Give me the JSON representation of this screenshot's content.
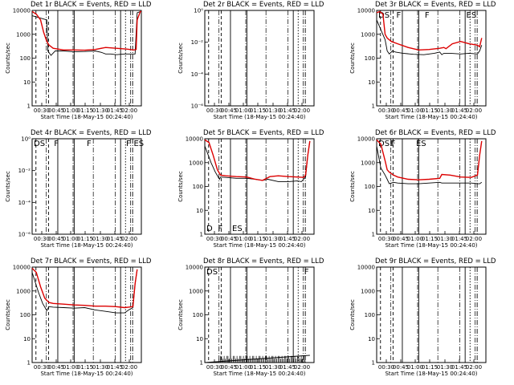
{
  "chart_data": [
    {
      "type": "line",
      "title": "Det 1r BLACK = Events, RED = LLD",
      "ylabel": "Counts/sec",
      "xlabel": "Start Time (18-May-15 00:24:40)",
      "y_ticks": [
        "1",
        "10",
        "100",
        "1000",
        "10000"
      ],
      "x_ticks": [
        "00:30",
        "00:45",
        "01:00",
        "01:15",
        "01:30",
        "01:45",
        "02:00"
      ],
      "markers": [
        {
          "label": "D",
          "t": 0
        }
      ],
      "series": [
        {
          "name": "Events",
          "color": "#000000",
          "t": [
            0,
            14,
            15,
            18,
            22,
            30,
            40,
            50,
            60,
            66,
            70,
            75,
            80,
            88,
            94,
            98,
            100,
            103,
            104
          ],
          "values": [
            6000,
            4000,
            200,
            130,
            200,
            200,
            185,
            190,
            200,
            175,
            150,
            150,
            140,
            150,
            150,
            150,
            8000,
            9000,
            9000
          ]
        },
        {
          "name": "LLD",
          "color": "#dd0000",
          "t": [
            0,
            4,
            8,
            11,
            14,
            16,
            20,
            30,
            40,
            50,
            60,
            70,
            80,
            90,
            97,
            99,
            100,
            103,
            104
          ],
          "values": [
            9000,
            7000,
            4000,
            1200,
            500,
            360,
            260,
            220,
            220,
            215,
            230,
            280,
            260,
            240,
            220,
            230,
            4000,
            9000,
            9000
          ]
        }
      ]
    },
    {
      "type": "line",
      "title": "Det 2r BLACK = Events, RED = LLD",
      "ylabel": "Counts/sec",
      "xlabel": "Start Time (18-May-15 00:24:40)",
      "y_ticks": [
        "10⁻⁶",
        "10⁻⁴",
        "10⁻²",
        "10⁰"
      ],
      "x_ticks": [
        "00:30",
        "00:45",
        "01:00",
        "01:15",
        "01:30",
        "01:45",
        "02:00"
      ],
      "markers": [
        {
          "label": "DS",
          "t": 0
        },
        {
          "label": "F",
          "t": 0
        },
        {
          "label": "F",
          "t": 0
        },
        {
          "label": "F",
          "t": 0
        },
        {
          "label": "ES",
          "t": 0
        }
      ],
      "series": []
    },
    {
      "type": "line",
      "title": "Det 3r BLACK = Events, RED = LLD",
      "ylabel": "Counts/sec",
      "xlabel": "Start Time (18-May-15 00:24:40)",
      "y_ticks": [
        "1",
        "10",
        "100",
        "1000",
        "10000"
      ],
      "x_ticks": [
        "00:30",
        "00:45",
        "01:00",
        "01:15",
        "01:30",
        "01:45",
        "02:00"
      ],
      "markers": [
        {
          "label": "DS",
          "t": 0
        },
        {
          "label": "F",
          "t": 0
        },
        {
          "label": "F",
          "t": 0
        },
        {
          "label": "ES",
          "t": 0
        }
      ],
      "series": [
        {
          "name": "Events",
          "color": "#000000",
          "t": [
            0,
            8,
            10,
            12,
            15,
            18,
            25,
            35,
            45,
            55,
            60,
            62,
            64,
            70,
            80,
            88,
            96,
            98,
            100
          ],
          "values": [
            4000,
            600,
            200,
            150,
            200,
            180,
            160,
            145,
            140,
            160,
            180,
            140,
            160,
            160,
            150,
            160,
            150,
            200,
            350
          ]
        },
        {
          "name": "LLD",
          "color": "#dd0000",
          "t": [
            0,
            3,
            6,
            8,
            10,
            14,
            20,
            30,
            40,
            50,
            60,
            64,
            66,
            72,
            80,
            88,
            96,
            98,
            100
          ],
          "values": [
            8000,
            9000,
            7000,
            1000,
            700,
            500,
            400,
            280,
            220,
            230,
            260,
            280,
            250,
            400,
            500,
            400,
            350,
            300,
            700
          ]
        }
      ]
    },
    {
      "type": "line",
      "title": "Det 4r BLACK = Events, RED = LLD",
      "ylabel": "Counts/sec",
      "xlabel": "Start Time (18-May-15 00:24:40)",
      "y_ticks": [
        "10⁻⁶",
        "10⁻⁴",
        "10⁻²",
        "10⁰"
      ],
      "x_ticks": [
        "00:30",
        "00:45",
        "01:00",
        "01:15",
        "01:30",
        "01:45",
        "02:00"
      ],
      "markers": [
        {
          "label": "DS",
          "t": 0
        },
        {
          "label": "F",
          "t": 0
        },
        {
          "label": "F",
          "t": 0
        },
        {
          "label": "F",
          "t": 0
        },
        {
          "label": "ES",
          "t": 0
        }
      ],
      "series": []
    },
    {
      "type": "line",
      "title": "Det 5r BLACK = Events, RED = LLD",
      "ylabel": "Counts/sec",
      "xlabel": "Start Time (18-May-15 00:24:40)",
      "y_ticks": [
        "1",
        "10",
        "100",
        "1000",
        "10000"
      ],
      "x_ticks": [
        "00:30",
        "00:45",
        "01:00",
        "01:15",
        "01:30",
        "01:45",
        "02:00"
      ],
      "markers": [
        {
          "label": "D",
          "t": 0
        },
        {
          "label": "F",
          "t": 0
        },
        {
          "label": "ES",
          "t": 0
        }
      ],
      "series": [
        {
          "name": "Events",
          "color": "#000000",
          "t": [
            0,
            6,
            10,
            14,
            15,
            20,
            30,
            40,
            48,
            55,
            60,
            70,
            80,
            88,
            92,
            96,
            98,
            100
          ],
          "values": [
            5000,
            1000,
            400,
            200,
            250,
            240,
            220,
            220,
            200,
            180,
            200,
            160,
            160,
            170,
            160,
            250,
            2000,
            8000
          ]
        },
        {
          "name": "LLD",
          "color": "#dd0000",
          "t": [
            0,
            4,
            8,
            12,
            15,
            20,
            30,
            40,
            48,
            55,
            62,
            70,
            80,
            88,
            94,
            96,
            98,
            100
          ],
          "values": [
            9000,
            7000,
            2000,
            500,
            300,
            280,
            260,
            250,
            200,
            180,
            260,
            280,
            260,
            250,
            240,
            300,
            2000,
            8000
          ]
        }
      ]
    },
    {
      "type": "line",
      "title": "Det 6r BLACK = Events, RED = LLD",
      "ylabel": "Counts/sec",
      "xlabel": "Start Time (18-May-15 00:24:40)",
      "y_ticks": [
        "1",
        "10",
        "100",
        "1000",
        "10000"
      ],
      "x_ticks": [
        "00:30",
        "00:45",
        "01:00",
        "01:15",
        "01:30",
        "01:45",
        "02:00"
      ],
      "markers": [
        {
          "label": "DS",
          "t": 0
        },
        {
          "label": "F",
          "t": 0
        },
        {
          "label": "F",
          "t": 0
        },
        {
          "label": "ES",
          "t": 0
        }
      ],
      "series": [
        {
          "name": "Events",
          "color": "#000000",
          "t": [
            0,
            4,
            8,
            10,
            12,
            16,
            20,
            30,
            40,
            50,
            60,
            62,
            70,
            80,
            90,
            96,
            98,
            100
          ],
          "values": [
            5000,
            600,
            300,
            200,
            130,
            150,
            140,
            130,
            130,
            140,
            150,
            140,
            140,
            140,
            140,
            130,
            130,
            150
          ]
        },
        {
          "name": "LLD",
          "color": "#dd0000",
          "t": [
            0,
            4,
            8,
            10,
            12,
            16,
            20,
            30,
            40,
            50,
            60,
            62,
            70,
            80,
            90,
            96,
            98,
            100
          ],
          "values": [
            9000,
            6000,
            1200,
            500,
            400,
            300,
            250,
            200,
            190,
            200,
            220,
            320,
            300,
            250,
            240,
            300,
            2000,
            8000
          ]
        }
      ]
    },
    {
      "type": "line",
      "title": "Det 7r BLACK = Events, RED = LLD",
      "ylabel": "Counts/sec",
      "xlabel": "Start Time (18-May-15 00:24:40)",
      "y_ticks": [
        "1",
        "10",
        "100",
        "1000",
        "10000"
      ],
      "x_ticks": [
        "00:30",
        "00:45",
        "01:00",
        "01:15",
        "01:30",
        "01:45",
        "02:00"
      ],
      "markers": [
        {
          "label": "D",
          "t": 0
        },
        {
          "label": "F",
          "t": 0
        },
        {
          "label": "ES",
          "t": 0
        }
      ],
      "series": [
        {
          "name": "Events",
          "color": "#000000",
          "t": [
            0,
            6,
            10,
            14,
            16,
            20,
            30,
            40,
            50,
            60,
            70,
            80,
            88,
            92,
            96,
            98,
            100
          ],
          "values": [
            6000,
            900,
            300,
            150,
            220,
            210,
            200,
            190,
            200,
            160,
            140,
            120,
            120,
            160,
            200,
            2000,
            8000
          ]
        },
        {
          "name": "LLD",
          "color": "#dd0000",
          "t": [
            0,
            4,
            8,
            12,
            16,
            20,
            30,
            40,
            50,
            60,
            70,
            80,
            88,
            92,
            96,
            98,
            100
          ],
          "values": [
            9000,
            6000,
            1500,
            500,
            330,
            300,
            280,
            260,
            250,
            230,
            230,
            220,
            200,
            210,
            220,
            2000,
            8000
          ]
        }
      ]
    },
    {
      "type": "line",
      "title": "Det 8r BLACK = Events, RED = LLD",
      "ylabel": "Counts/sec",
      "xlabel": "Start Time (18-May-15 00:24:40)",
      "y_ticks": [
        "1",
        "10",
        "100",
        "1000",
        "10000"
      ],
      "x_ticks": [
        "00:30",
        "00:45",
        "01:00",
        "01:15",
        "01:30",
        "01:45",
        "02:00"
      ],
      "markers": [
        {
          "label": "DS",
          "t": 0
        },
        {
          "label": "F",
          "t": 0
        },
        {
          "label": "F",
          "t": 0
        },
        {
          "label": "F",
          "t": 0
        },
        {
          "label": "ES",
          "t": 0
        }
      ],
      "series": [
        {
          "name": "Events",
          "color": "#000000",
          "t": [
            0,
            100
          ],
          "values": [
            1,
            2
          ]
        }
      ]
    },
    {
      "type": "line",
      "title": "Det 9r BLACK = Events, RED = LLD",
      "ylabel": "Counts/sec",
      "xlabel": "Start Time (18-May-15 00:24:40)",
      "y_ticks": [
        "1",
        "10",
        "100",
        "1000",
        "10000"
      ],
      "x_ticks": [
        "00:30",
        "00:45",
        "01:00",
        "01:15",
        "01:30",
        "01:45",
        "02:00"
      ],
      "markers": [
        {
          "label": "DS",
          "t": 0
        },
        {
          "label": "F",
          "t": 0
        },
        {
          "label": "F",
          "t": 0
        },
        {
          "label": "F",
          "t": 0
        },
        {
          "label": "ES",
          "t": 0
        }
      ],
      "series": []
    }
  ]
}
